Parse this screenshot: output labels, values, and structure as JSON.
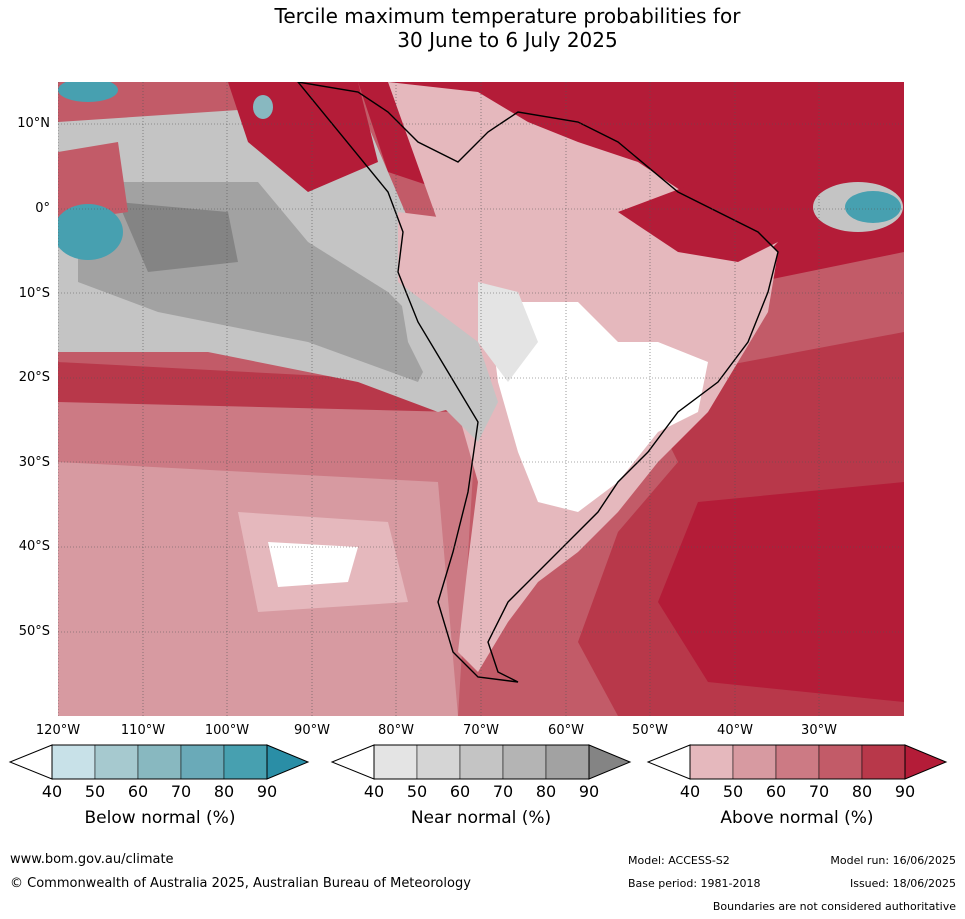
{
  "title": {
    "line1": "Tercile maximum temperature probabilities for",
    "line2": "30 June to 6 July 2025"
  },
  "map": {
    "lat_labels": [
      "10°N",
      "0°",
      "10°S",
      "20°S",
      "30°S",
      "40°S",
      "50°S"
    ],
    "lon_labels": [
      "120°W",
      "110°W",
      "100°W",
      "90°W",
      "80°W",
      "70°W",
      "60°W",
      "50°W",
      "40°W",
      "30°W"
    ],
    "extent": {
      "west": -124,
      "east": -24,
      "north": 15,
      "south": -60
    },
    "colors": {
      "below": [
        "#ffffff",
        "#c8e1e8",
        "#a6c9cf",
        "#88b8c0",
        "#6aaab8",
        "#47a0b0",
        "#2a8ea6"
      ],
      "near": [
        "#ffffff",
        "#e4e4e4",
        "#d5d5d5",
        "#c4c4c4",
        "#b4b4b4",
        "#a2a2a2",
        "#848484"
      ],
      "above": [
        "#ffffff",
        "#e5b8bd",
        "#d79aa1",
        "#cc7a84",
        "#c25b68",
        "#b8384a",
        "#b41c38"
      ]
    }
  },
  "colorbars": [
    {
      "label": "Below normal (%)",
      "ticks": [
        "40",
        "50",
        "60",
        "70",
        "80",
        "90"
      ],
      "palette": "below"
    },
    {
      "label": "Near normal (%)",
      "ticks": [
        "40",
        "50",
        "60",
        "70",
        "80",
        "90"
      ],
      "palette": "near"
    },
    {
      "label": "Above normal (%)",
      "ticks": [
        "40",
        "50",
        "60",
        "70",
        "80",
        "90"
      ],
      "palette": "above"
    }
  ],
  "footer": {
    "website": "www.bom.gov.au/climate",
    "copyright": "© Commonwealth of Australia 2025, Australian Bureau of Meteorology",
    "model": "Model: ACCESS-S2",
    "base_period": "Base period: 1981-2018",
    "model_run": "Model run: 16/06/2025",
    "issued": "Issued: 18/06/2025",
    "disclaimer": "Boundaries are not considered authoritative"
  }
}
